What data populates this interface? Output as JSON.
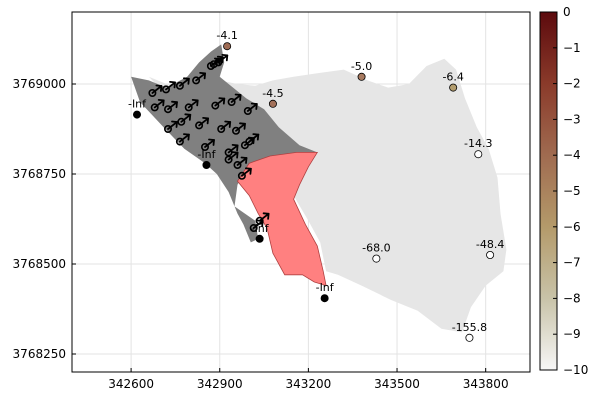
{
  "chart_data": {
    "type": "scatter",
    "title": "",
    "xlabel": "",
    "ylabel": "",
    "xlim": [
      342400,
      343950
    ],
    "ylim": [
      3768200,
      3769200
    ],
    "xticks": [
      342600,
      342900,
      343200,
      343500,
      343800
    ],
    "yticks": [
      3768250,
      3768500,
      3768750,
      3769000
    ],
    "grid": true,
    "regions": [
      {
        "name": "light-region",
        "color": "#e6e6e6",
        "polygon": [
          [
            342660,
            3769020
          ],
          [
            342720,
            3769000
          ],
          [
            342800,
            3768990
          ],
          [
            342900,
            3769010
          ],
          [
            342960,
            3769000
          ],
          [
            343020,
            3768995
          ],
          [
            343080,
            3769010
          ],
          [
            343150,
            3769020
          ],
          [
            343230,
            3769030
          ],
          [
            343320,
            3769040
          ],
          [
            343400,
            3769010
          ],
          [
            343470,
            3768990
          ],
          [
            343540,
            3769000
          ],
          [
            343600,
            3769050
          ],
          [
            343660,
            3769070
          ],
          [
            343700,
            3769040
          ],
          [
            343730,
            3768960
          ],
          [
            343770,
            3768880
          ],
          [
            343810,
            3768820
          ],
          [
            343840,
            3768740
          ],
          [
            343850,
            3768640
          ],
          [
            343870,
            3768540
          ],
          [
            343860,
            3768480
          ],
          [
            343800,
            3768440
          ],
          [
            343750,
            3768380
          ],
          [
            343720,
            3768310
          ],
          [
            343650,
            3768320
          ],
          [
            343570,
            3768370
          ],
          [
            343480,
            3768400
          ],
          [
            343380,
            3768440
          ],
          [
            343300,
            3768470
          ],
          [
            343260,
            3768480
          ],
          [
            343240,
            3768560
          ],
          [
            343200,
            3768620
          ],
          [
            343150,
            3768690
          ],
          [
            343150,
            3768760
          ],
          [
            343230,
            3768810
          ],
          [
            343120,
            3768820
          ],
          [
            343020,
            3768830
          ],
          [
            342920,
            3768850
          ],
          [
            342850,
            3768870
          ],
          [
            342780,
            3768920
          ]
        ]
      },
      {
        "name": "dark-region",
        "color": "#808080",
        "polygon": [
          [
            342600,
            3769020
          ],
          [
            342660,
            3769010
          ],
          [
            342720,
            3768990
          ],
          [
            342790,
            3769020
          ],
          [
            342830,
            3769060
          ],
          [
            342870,
            3769090
          ],
          [
            342905,
            3769110
          ],
          [
            342915,
            3769060
          ],
          [
            342900,
            3769020
          ],
          [
            342930,
            3769000
          ],
          [
            342990,
            3768960
          ],
          [
            343050,
            3768930
          ],
          [
            343100,
            3768880
          ],
          [
            343170,
            3768830
          ],
          [
            343230,
            3768810
          ],
          [
            343000,
            3768780
          ],
          [
            342960,
            3768720
          ],
          [
            342950,
            3768660
          ],
          [
            343020,
            3768620
          ],
          [
            343030,
            3768570
          ],
          [
            343005,
            3768560
          ],
          [
            342980,
            3768610
          ],
          [
            342960,
            3768640
          ],
          [
            342930,
            3768700
          ],
          [
            342890,
            3768750
          ],
          [
            342850,
            3768780
          ],
          [
            342780,
            3768820
          ],
          [
            342710,
            3768880
          ],
          [
            342630,
            3768950
          ]
        ]
      },
      {
        "name": "red-region",
        "color": "#ff8080",
        "polygon": [
          [
            343000,
            3768780
          ],
          [
            343070,
            3768800
          ],
          [
            343160,
            3768810
          ],
          [
            343230,
            3768810
          ],
          [
            343200,
            3768770
          ],
          [
            343170,
            3768720
          ],
          [
            343150,
            3768680
          ],
          [
            343190,
            3768610
          ],
          [
            343230,
            3768550
          ],
          [
            343250,
            3768480
          ],
          [
            343260,
            3768440
          ],
          [
            343220,
            3768450
          ],
          [
            343180,
            3768470
          ],
          [
            343120,
            3768470
          ],
          [
            343080,
            3768530
          ],
          [
            343060,
            3768600
          ],
          [
            343030,
            3768640
          ],
          [
            343000,
            3768690
          ],
          [
            342960,
            3768730
          ]
        ]
      }
    ],
    "points": [
      {
        "x": 342620,
        "y": 3768915,
        "label": "-Inf",
        "value": null,
        "color": "#000000"
      },
      {
        "x": 342925,
        "y": 3769105,
        "label": "-4.1",
        "value": -4.1,
        "color": "#9e6b54"
      },
      {
        "x": 342855,
        "y": 3768775,
        "label": "-Inf",
        "value": null,
        "color": "#000000"
      },
      {
        "x": 343080,
        "y": 3768945,
        "label": "-4.5",
        "value": -4.5,
        "color": "#a3715a"
      },
      {
        "x": 343035,
        "y": 3768570,
        "label": "-Inf",
        "value": null,
        "color": "#000000"
      },
      {
        "x": 343255,
        "y": 3768405,
        "label": "-Inf",
        "value": null,
        "color": "#000000"
      },
      {
        "x": 343380,
        "y": 3769020,
        "label": "-5.0",
        "value": -5.0,
        "color": "#a77a60"
      },
      {
        "x": 343690,
        "y": 3768990,
        "label": "-6.4",
        "value": -6.4,
        "color": "#b29c6d"
      },
      {
        "x": 343775,
        "y": 3768805,
        "label": "-14.3",
        "value": -14.3,
        "color": "#ffffff"
      },
      {
        "x": 343430,
        "y": 3768515,
        "label": "-68.0",
        "value": -68.0,
        "color": "#ffffff"
      },
      {
        "x": 343815,
        "y": 3768525,
        "label": "-48.4",
        "value": -48.4,
        "color": "#ffffff"
      },
      {
        "x": 343745,
        "y": 3768295,
        "label": "-155.8",
        "value": -155.8,
        "color": "#ffffff"
      }
    ],
    "arrows": [
      {
        "x": 342672,
        "y": 3768975
      },
      {
        "x": 342718,
        "y": 3768985
      },
      {
        "x": 342765,
        "y": 3768995
      },
      {
        "x": 342820,
        "y": 3769010
      },
      {
        "x": 342870,
        "y": 3769050
      },
      {
        "x": 342895,
        "y": 3769060
      },
      {
        "x": 342880,
        "y": 3769055
      },
      {
        "x": 342680,
        "y": 3768935
      },
      {
        "x": 342725,
        "y": 3768930
      },
      {
        "x": 342795,
        "y": 3768935
      },
      {
        "x": 342885,
        "y": 3768940
      },
      {
        "x": 342940,
        "y": 3768950
      },
      {
        "x": 342995,
        "y": 3768925
      },
      {
        "x": 342725,
        "y": 3768875
      },
      {
        "x": 342770,
        "y": 3768895
      },
      {
        "x": 342830,
        "y": 3768885
      },
      {
        "x": 342905,
        "y": 3768875
      },
      {
        "x": 342955,
        "y": 3768870
      },
      {
        "x": 343000,
        "y": 3768840
      },
      {
        "x": 342765,
        "y": 3768840
      },
      {
        "x": 342850,
        "y": 3768825
      },
      {
        "x": 342930,
        "y": 3768810
      },
      {
        "x": 342985,
        "y": 3768830
      },
      {
        "x": 342960,
        "y": 3768775
      },
      {
        "x": 342975,
        "y": 3768745
      },
      {
        "x": 342930,
        "y": 3768790
      },
      {
        "x": 343035,
        "y": 3768620
      },
      {
        "x": 343015,
        "y": 3768600
      }
    ],
    "colorbar": {
      "min": -10,
      "max": 0,
      "ticks": [
        0,
        -1,
        -2,
        -3,
        -4,
        -5,
        -6,
        -7,
        -8,
        -9,
        -10
      ],
      "tick_labels": [
        "0",
        "−1",
        "−2",
        "−3",
        "−4",
        "−5",
        "−6",
        "−7",
        "−8",
        "−9",
        "−10"
      ],
      "stops": [
        {
          "value": 0,
          "color": "#5c0a0d"
        },
        {
          "value": -2,
          "color": "#8a3a2a"
        },
        {
          "value": -4,
          "color": "#a06b50"
        },
        {
          "value": -6,
          "color": "#b49a6a"
        },
        {
          "value": -8,
          "color": "#c8c3a8"
        },
        {
          "value": -10,
          "color": "#f7f7f7"
        }
      ]
    }
  }
}
